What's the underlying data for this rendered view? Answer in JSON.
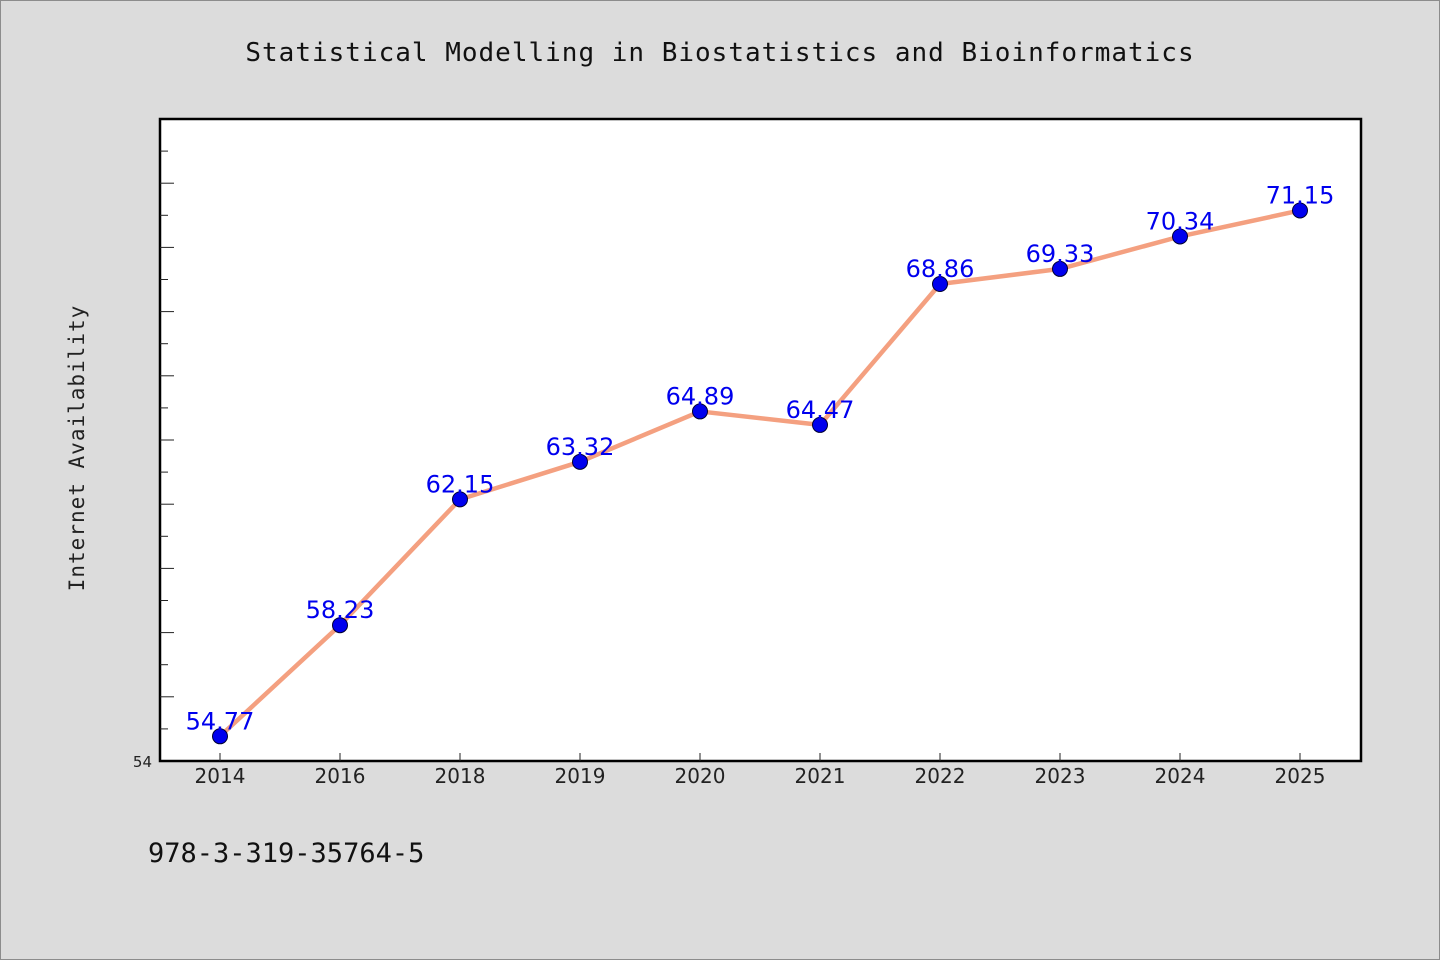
{
  "chart_data": {
    "type": "line",
    "title": "Statistical Modelling in Biostatistics and Bioinformatics",
    "xlabel": "",
    "ylabel": "Internet Availability",
    "categories": [
      "2014",
      "2016",
      "2018",
      "2019",
      "2020",
      "2021",
      "2022",
      "2023",
      "2024",
      "2025"
    ],
    "series": [
      {
        "values": [
          54.77,
          58.23,
          62.15,
          63.32,
          64.89,
          64.47,
          68.86,
          69.33,
          70.34,
          71.15
        ],
        "labels": [
          "54.77",
          "58.23",
          "62.15",
          "63.32",
          "64.89",
          "64.47",
          "68.86",
          "69.33",
          "70.34",
          "71.15"
        ]
      }
    ],
    "ylim": [
      54,
      74
    ],
    "y_min_label": "54",
    "grid": false,
    "legend": "none",
    "colors": {
      "line": "#f4a080",
      "marker": "#0000ee",
      "label": "#0000ee",
      "figure_background": "#dcdcdc",
      "plot_background": "#ffffff"
    }
  },
  "footer": {
    "isbn": "978-3-319-35764-5"
  }
}
